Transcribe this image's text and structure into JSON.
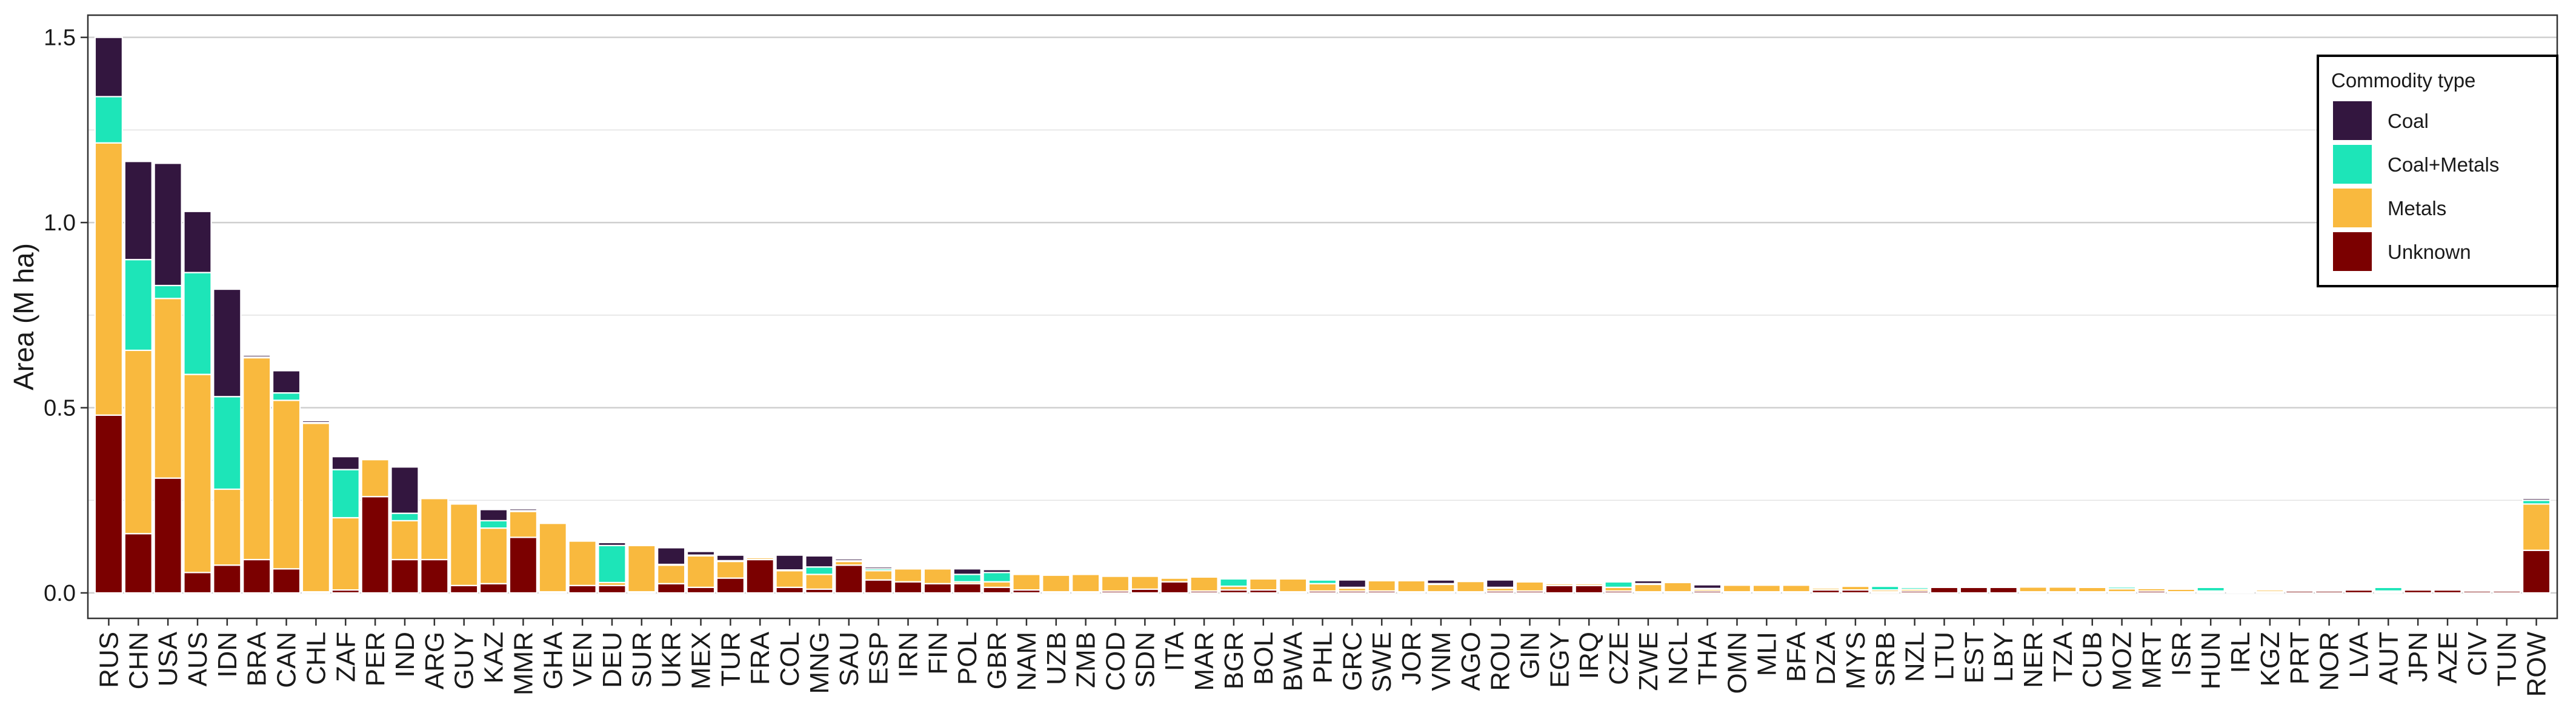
{
  "chart_data": {
    "type": "bar",
    "stacked": true,
    "ylabel": "Area (M ha)",
    "xlabel": "",
    "ylim": [
      0,
      1.56
    ],
    "yticks": [
      0.0,
      0.5,
      1.0,
      1.5
    ],
    "ytick_labels": [
      "0.0",
      "0.5",
      "1.0",
      "1.5"
    ],
    "grid": true,
    "legend": {
      "title": "Commodity type",
      "position": "top-right",
      "entries": [
        "Coal",
        "Coal+Metals",
        "Metals",
        "Unknown"
      ]
    },
    "colors": {
      "Coal": "#33163f",
      "Coal+Metals": "#1de5b8",
      "Metals": "#f9b93e",
      "Unknown": "#7b0000"
    },
    "categories": [
      "RUS",
      "CHN",
      "USA",
      "AUS",
      "IDN",
      "BRA",
      "CAN",
      "CHL",
      "ZAF",
      "PER",
      "IND",
      "ARG",
      "GUY",
      "KAZ",
      "MMR",
      "GHA",
      "VEN",
      "DEU",
      "SUR",
      "UKR",
      "MEX",
      "TUR",
      "FRA",
      "COL",
      "MNG",
      "SAU",
      "ESP",
      "IRN",
      "FIN",
      "POL",
      "GBR",
      "NAM",
      "UZB",
      "ZMB",
      "COD",
      "SDN",
      "ITA",
      "MAR",
      "BGR",
      "BOL",
      "BWA",
      "PHL",
      "GRC",
      "SWE",
      "JOR",
      "VNM",
      "AGO",
      "ROU",
      "GIN",
      "EGY",
      "IRQ",
      "CZE",
      "ZWE",
      "NCL",
      "THA",
      "OMN",
      "MLI",
      "BFA",
      "DZA",
      "MYS",
      "SRB",
      "NZL",
      "LTU",
      "EST",
      "LBY",
      "NER",
      "TZA",
      "CUB",
      "MOZ",
      "MRT",
      "ISR",
      "HUN",
      "IRL",
      "KGZ",
      "PRT",
      "NOR",
      "LVA",
      "AUT",
      "JPN",
      "AZE",
      "CIV",
      "TUN",
      "ROW"
    ],
    "series": [
      {
        "name": "Unknown",
        "values": [
          0.48,
          0.16,
          0.31,
          0.055,
          0.075,
          0.09,
          0.065,
          0.003,
          0.008,
          0.26,
          0.09,
          0.09,
          0.02,
          0.025,
          0.15,
          0.003,
          0.02,
          0.02,
          0.003,
          0.025,
          0.015,
          0.04,
          0.09,
          0.015,
          0.01,
          0.075,
          0.035,
          0.03,
          0.025,
          0.025,
          0.015,
          0.008,
          0.003,
          0.003,
          0.005,
          0.01,
          0.03,
          0.005,
          0.008,
          0.008,
          0.003,
          0.005,
          0.005,
          0.005,
          0.003,
          0.003,
          0.003,
          0.005,
          0.005,
          0.02,
          0.02,
          0.005,
          0.003,
          0.003,
          0.005,
          0.003,
          0.003,
          0.003,
          0.008,
          0.008,
          0.003,
          0.005,
          0.015,
          0.015,
          0.015,
          0.003,
          0.003,
          0.003,
          0.003,
          0.005,
          0.003,
          0.003,
          0.003,
          0.003,
          0.005,
          0.005,
          0.008,
          0.003,
          0.008,
          0.008,
          0.005,
          0.005,
          0.115
        ]
      },
      {
        "name": "Metals",
        "values": [
          0.735,
          0.495,
          0.485,
          0.535,
          0.205,
          0.545,
          0.455,
          0.455,
          0.195,
          0.1,
          0.105,
          0.165,
          0.22,
          0.15,
          0.07,
          0.185,
          0.12,
          0.008,
          0.125,
          0.05,
          0.085,
          0.045,
          0.005,
          0.045,
          0.04,
          0.01,
          0.025,
          0.035,
          0.04,
          0.005,
          0.015,
          0.042,
          0.045,
          0.047,
          0.04,
          0.035,
          0.01,
          0.038,
          0.01,
          0.03,
          0.035,
          0.02,
          0.008,
          0.028,
          0.03,
          0.02,
          0.028,
          0.008,
          0.025,
          0.005,
          0.005,
          0.01,
          0.02,
          0.025,
          0.005,
          0.018,
          0.018,
          0.018,
          0.005,
          0.01,
          0.005,
          0.005,
          0.002,
          0.002,
          0.002,
          0.013,
          0.013,
          0.012,
          0.008,
          0.007,
          0.007,
          0.002,
          0.002,
          0.005,
          0.003,
          0.003,
          0.002,
          0.002,
          0.002,
          0.002,
          0.002,
          0.002,
          0.125
        ]
      },
      {
        "name": "Coal+Metals",
        "values": [
          0.125,
          0.245,
          0.035,
          0.275,
          0.25,
          0.002,
          0.02,
          0.002,
          0.13,
          0.002,
          0.02,
          0.002,
          0.002,
          0.02,
          0.002,
          0.002,
          0.002,
          0.1,
          0.002,
          0.002,
          0.002,
          0.002,
          0.002,
          0.002,
          0.02,
          0.002,
          0.005,
          0.002,
          0.002,
          0.02,
          0.025,
          0.002,
          0.002,
          0.002,
          0.002,
          0.002,
          0.002,
          0.002,
          0.02,
          0.002,
          0.002,
          0.01,
          0.002,
          0.002,
          0.002,
          0.002,
          0.002,
          0.002,
          0.002,
          0.002,
          0.002,
          0.015,
          0.002,
          0.002,
          0.002,
          0.002,
          0.002,
          0.002,
          0.002,
          0.002,
          0.01,
          0.005,
          0.002,
          0.002,
          0.002,
          0.002,
          0.002,
          0.002,
          0.005,
          0.002,
          0.002,
          0.01,
          0.002,
          0.002,
          0.002,
          0.002,
          0.002,
          0.01,
          0.002,
          0.002,
          0.002,
          0.002,
          0.01
        ]
      },
      {
        "name": "Coal",
        "values": [
          0.16,
          0.265,
          0.33,
          0.165,
          0.29,
          0.005,
          0.06,
          0.005,
          0.035,
          0.002,
          0.125,
          0.002,
          0.002,
          0.03,
          0.005,
          0.002,
          0.002,
          0.008,
          0.002,
          0.045,
          0.01,
          0.015,
          0.002,
          0.04,
          0.03,
          0.005,
          0.005,
          0.002,
          0.002,
          0.015,
          0.008,
          0.002,
          0.002,
          0.002,
          0.002,
          0.002,
          0.002,
          0.002,
          0.002,
          0.002,
          0.002,
          0.002,
          0.02,
          0.002,
          0.002,
          0.01,
          0.002,
          0.02,
          0.002,
          0.002,
          0.002,
          0.002,
          0.008,
          0.002,
          0.01,
          0.002,
          0.002,
          0.002,
          0.002,
          0.002,
          0.002,
          0.002,
          0.002,
          0.002,
          0.002,
          0.002,
          0.002,
          0.002,
          0.002,
          0.002,
          0.002,
          0.002,
          0.002,
          0.002,
          0.002,
          0.002,
          0.002,
          0.002,
          0.002,
          0.002,
          0.002,
          0.002,
          0.005
        ]
      }
    ]
  }
}
